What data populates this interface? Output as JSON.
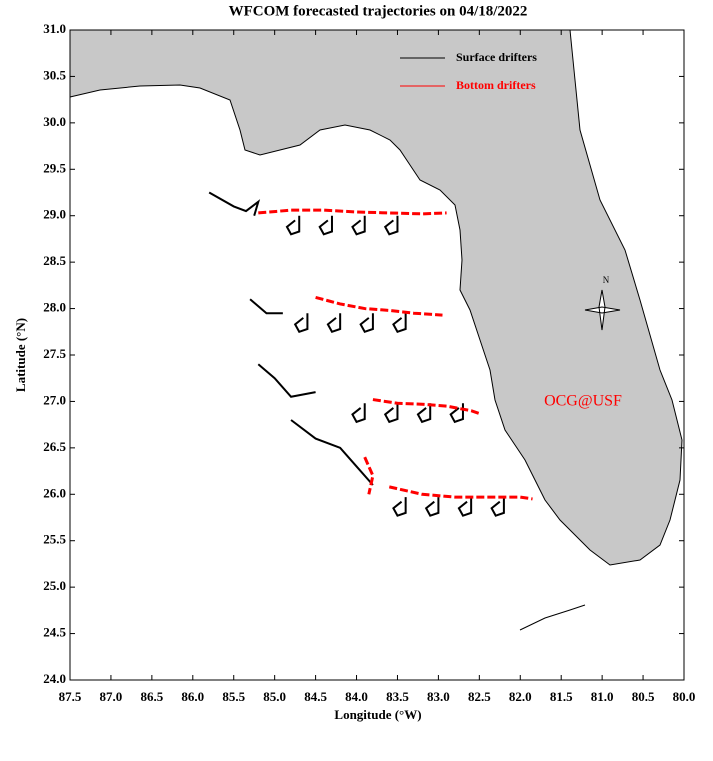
{
  "chart_data": {
    "type": "trajectory-map",
    "title": "WFCOM forecasted trajectories on 04/18/2022",
    "x_label": "Longitude (°W)",
    "y_label": "Latitude (°N)",
    "annotation": "OCG@USF",
    "compass": "N",
    "xlim": [
      87.5,
      80.0
    ],
    "ylim": [
      24.0,
      31.0
    ],
    "xticks": [
      87.5,
      {
        "value": 87,
        "label": "87.0"
      },
      86.5,
      {
        "value": 86,
        "label": "86.0"
      },
      85.5,
      {
        "value": 85,
        "label": "85.0"
      },
      84.5,
      {
        "value": 84,
        "label": "84.0"
      },
      83.5,
      {
        "value": 83,
        "label": "83.0"
      },
      82.5,
      {
        "value": 82,
        "label": "82.0"
      },
      81.5,
      {
        "value": 81,
        "label": "81.0"
      },
      80.5,
      {
        "value": 80,
        "label": "80.0"
      }
    ],
    "yticks": [
      {
        "value": 24,
        "label": "24.0"
      },
      24.5,
      {
        "value": 25,
        "label": "25.0"
      },
      25.5,
      {
        "value": 26,
        "label": "26.0"
      },
      26.5,
      {
        "value": 27,
        "label": "27.0"
      },
      27.5,
      {
        "value": 28,
        "label": "28.0"
      },
      28.5,
      {
        "value": 29,
        "label": "29.0"
      },
      29.5,
      {
        "value": 30,
        "label": "30.0"
      },
      30.5,
      {
        "value": 31,
        "label": "31.0"
      }
    ],
    "series": [
      {
        "name": "Surface drifters",
        "color": "#000000",
        "tracks": [
          {
            "x": [
              85.8,
              85.5,
              85.35,
              85.2,
              85.25
            ],
            "y": [
              29.25,
              29.1,
              29.05,
              29.15,
              29.0
            ]
          },
          {
            "x": [
              84.7,
              84.7,
              84.8,
              84.85,
              84.75
            ],
            "y": [
              29.0,
              28.83,
              28.8,
              28.88,
              28.95
            ]
          },
          {
            "x": [
              84.3,
              84.3,
              84.4,
              84.45,
              84.35
            ],
            "y": [
              29.0,
              28.83,
              28.8,
              28.88,
              28.95
            ]
          },
          {
            "x": [
              83.9,
              83.9,
              84.0,
              84.05,
              83.95
            ],
            "y": [
              29.0,
              28.83,
              28.8,
              28.88,
              28.95
            ]
          },
          {
            "x": [
              83.5,
              83.5,
              83.6,
              83.65,
              83.55
            ],
            "y": [
              29.0,
              28.83,
              28.8,
              28.88,
              28.95
            ]
          },
          {
            "x": [
              85.3,
              85.1,
              84.9
            ],
            "y": [
              28.1,
              27.95,
              27.95
            ]
          },
          {
            "x": [
              84.6,
              84.6,
              84.7,
              84.75,
              84.65
            ],
            "y": [
              27.95,
              27.78,
              27.75,
              27.83,
              27.9
            ]
          },
          {
            "x": [
              84.2,
              84.2,
              84.3,
              84.35,
              84.25
            ],
            "y": [
              27.95,
              27.78,
              27.75,
              27.83,
              27.9
            ]
          },
          {
            "x": [
              83.8,
              83.8,
              83.9,
              83.95,
              83.85
            ],
            "y": [
              27.95,
              27.78,
              27.75,
              27.83,
              27.9
            ]
          },
          {
            "x": [
              83.4,
              83.4,
              83.5,
              83.55,
              83.45
            ],
            "y": [
              27.95,
              27.78,
              27.75,
              27.83,
              27.9
            ]
          },
          {
            "x": [
              85.2,
              85.0,
              84.8,
              84.5
            ],
            "y": [
              27.4,
              27.25,
              27.05,
              27.1
            ]
          },
          {
            "x": [
              83.9,
              83.9,
              84.0,
              84.05,
              83.95
            ],
            "y": [
              26.98,
              26.81,
              26.78,
              26.86,
              26.93
            ]
          },
          {
            "x": [
              83.5,
              83.5,
              83.6,
              83.65,
              83.55
            ],
            "y": [
              26.98,
              26.81,
              26.78,
              26.86,
              26.93
            ]
          },
          {
            "x": [
              83.1,
              83.1,
              83.2,
              83.25,
              83.15
            ],
            "y": [
              26.98,
              26.81,
              26.78,
              26.86,
              26.93
            ]
          },
          {
            "x": [
              82.7,
              82.7,
              82.8,
              82.85,
              82.75
            ],
            "y": [
              26.98,
              26.81,
              26.78,
              26.86,
              26.93
            ]
          },
          {
            "x": [
              84.8,
              84.5,
              84.2,
              84.0,
              83.8
            ],
            "y": [
              26.8,
              26.6,
              26.5,
              26.3,
              26.1
            ]
          },
          {
            "x": [
              83.4,
              83.4,
              83.5,
              83.55,
              83.45
            ],
            "y": [
              25.97,
              25.8,
              25.77,
              25.85,
              25.92
            ]
          },
          {
            "x": [
              83.0,
              83.0,
              83.1,
              83.15,
              83.05
            ],
            "y": [
              25.97,
              25.8,
              25.77,
              25.85,
              25.92
            ]
          },
          {
            "x": [
              82.6,
              82.6,
              82.7,
              82.75,
              82.65
            ],
            "y": [
              25.97,
              25.8,
              25.77,
              25.85,
              25.92
            ]
          },
          {
            "x": [
              82.2,
              82.2,
              82.3,
              82.35,
              82.25
            ],
            "y": [
              25.97,
              25.8,
              25.77,
              25.85,
              25.92
            ]
          }
        ]
      },
      {
        "name": "Bottom drifters",
        "color": "#ff0000",
        "tracks": [
          {
            "x": [
              85.2,
              84.8,
              84.4,
              84.0,
              83.6,
              83.2,
              82.9
            ],
            "y": [
              29.03,
              29.06,
              29.06,
              29.04,
              29.03,
              29.02,
              29.03
            ]
          },
          {
            "x": [
              84.5,
              84.2,
              83.9,
              83.6,
              83.3,
              82.95
            ],
            "y": [
              28.12,
              28.05,
              28.0,
              27.98,
              27.95,
              27.93
            ]
          },
          {
            "x": [
              83.8,
              83.5,
              83.2,
              82.9,
              82.6,
              82.5
            ],
            "y": [
              27.02,
              26.98,
              26.97,
              26.95,
              26.9,
              26.87
            ]
          },
          {
            "x": [
              83.9,
              83.8,
              83.85
            ],
            "y": [
              26.4,
              26.2,
              26.0
            ]
          },
          {
            "x": [
              83.6,
              83.2,
              82.8,
              82.4,
              82.0,
              81.85
            ],
            "y": [
              26.08,
              26.0,
              25.97,
              25.97,
              25.97,
              25.95
            ]
          }
        ]
      }
    ]
  }
}
